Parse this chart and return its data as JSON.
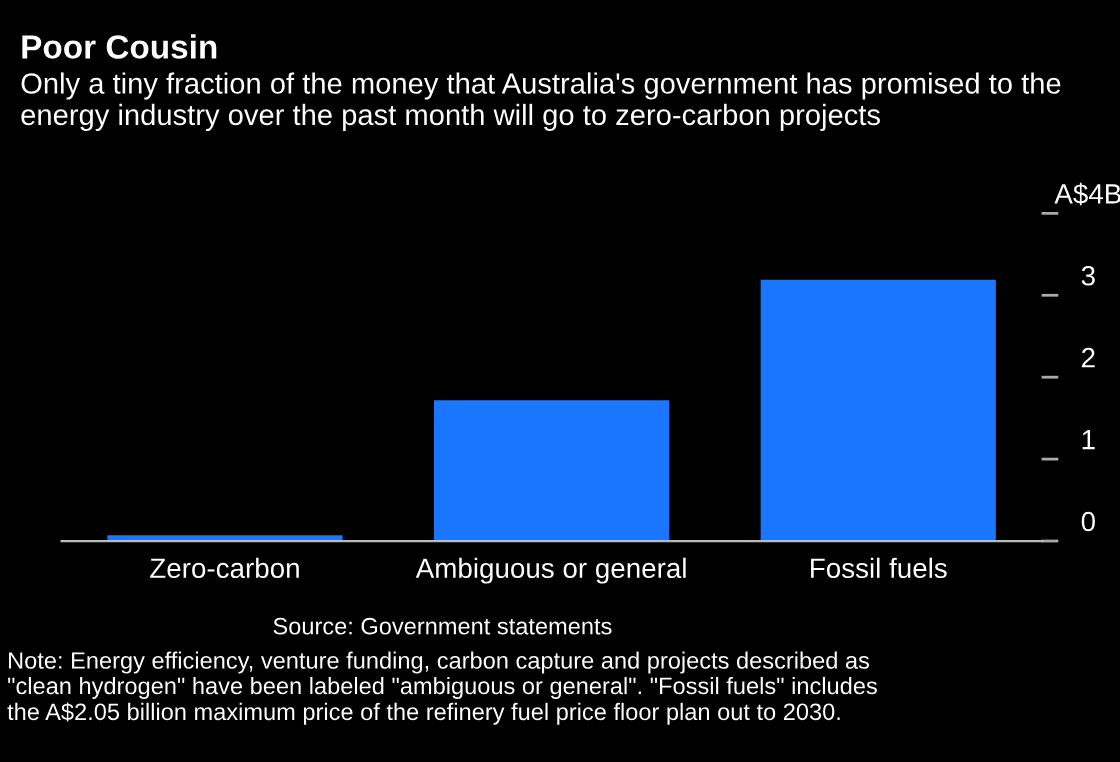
{
  "chart_data": {
    "type": "bar",
    "title": "Poor Cousin",
    "subtitle": "Only a tiny fraction of the money that Australia's government has promised to the energy industry over the past month will go to zero-carbon projects",
    "categories": [
      "Zero-carbon",
      "Ambiguous or general",
      "Fossil fuels"
    ],
    "values": [
      0.07,
      1.72,
      3.19
    ],
    "color": "#1a75ff",
    "ylim": [
      0,
      4
    ],
    "yticks": [
      0,
      1,
      2,
      3,
      {
        "value": 4,
        "label": "A$4B"
      }
    ],
    "grid": false,
    "annotations": [
      "Source: Government statements",
      "Note: Energy efficiency, venture funding, carbon capture and projects described as \"clean hydrogen\" have been labeled \"ambiguous or general\". \"Fossil fuels\" includes the A$2.05 billion maximum price of the refinery fuel price floor plan out to 2030."
    ]
  }
}
